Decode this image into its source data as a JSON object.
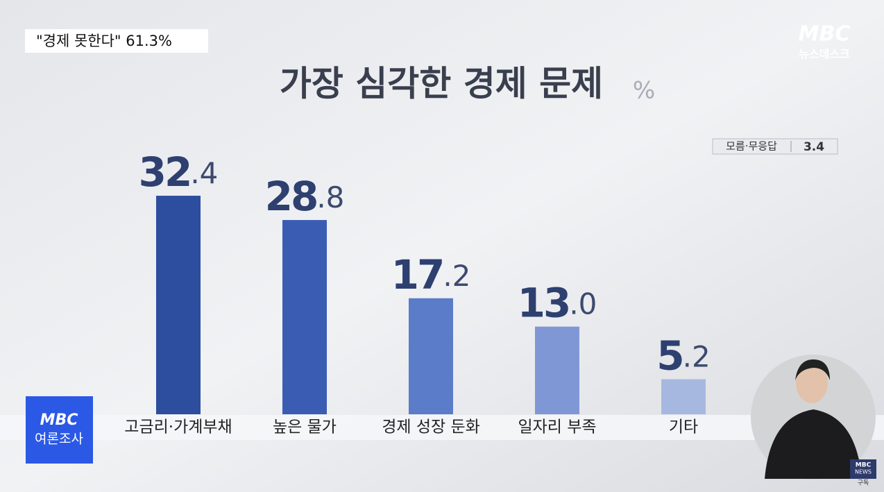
{
  "header": {
    "caption": "\"경제 못한다\" 61.3%",
    "logo_top": "MBC",
    "logo_bottom": "뉴스데스크"
  },
  "chart_data": {
    "type": "bar",
    "title": "가장 심각한 경제 문제",
    "unit": "%",
    "categories": [
      "고금리·가계부채",
      "높은 물가",
      "경제 성장 둔화",
      "일자리 부족",
      "기타"
    ],
    "values": [
      32.4,
      28.8,
      17.2,
      13.0,
      5.2
    ],
    "value_labels": [
      "32.4",
      "28.8",
      "17.2",
      "13.0",
      "5.2"
    ],
    "colors": [
      "#2d4d9e",
      "#3a5db3",
      "#5b7cc8",
      "#7f98d5",
      "#a7b8e0"
    ],
    "note": {
      "label": "모름·무응답",
      "value": 3.4
    }
  },
  "badge": {
    "top": "MBC",
    "bottom": "여론조사"
  },
  "corner": {
    "top": "MBC",
    "middle": "NEWS",
    "bottom": "구독"
  }
}
